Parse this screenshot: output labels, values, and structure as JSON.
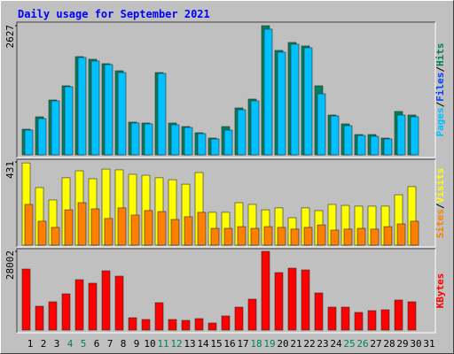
{
  "chart_data": [
    {
      "type": "bar",
      "title": "Daily usage for September 2021",
      "ylim": [
        0,
        2627
      ],
      "yticks": [
        2627
      ],
      "legend_labels": [
        "Pages",
        "Files",
        "Hits"
      ],
      "legend_colors": [
        "#00c0ff",
        "#0040ff",
        "#00805c"
      ],
      "legend_separator": "/",
      "series": [
        {
          "name": "Hits",
          "color": "#00805c",
          "values": [
            522,
            774,
            1116,
            1404,
            1998,
            1944,
            1854,
            1710,
            666,
            648,
            1674,
            648,
            576,
            450,
            342,
            576,
            954,
            1134,
            2627,
            2124,
            2286,
            2214,
            1404,
            810,
            630,
            414,
            414,
            342,
            882,
            810,
            null
          ]
        },
        {
          "name": "Pages",
          "color": "#00c0ff",
          "values": [
            504,
            738,
            1098,
            1386,
            1980,
            1908,
            1836,
            1674,
            648,
            630,
            1656,
            612,
            558,
            432,
            324,
            504,
            918,
            1098,
            2556,
            2088,
            2250,
            2178,
            1242,
            792,
            594,
            396,
            378,
            324,
            810,
            774,
            null
          ]
        }
      ]
    },
    {
      "type": "bar",
      "ylim": [
        0,
        431
      ],
      "yticks": [
        431
      ],
      "legend_labels": [
        "Sites",
        "Visits"
      ],
      "legend_colors": [
        "#ff8000",
        "#ffff00"
      ],
      "legend_separator": "/",
      "series": [
        {
          "name": "Visits",
          "color": "#ffff00",
          "values": [
            426,
            298,
            234,
            349,
            385,
            344,
            394,
            390,
            367,
            362,
            349,
            339,
            316,
            376,
            170,
            170,
            220,
            211,
            183,
            193,
            142,
            193,
            179,
            211,
            206,
            202,
            202,
            202,
            261,
            303,
            null
          ]
        },
        {
          "name": "Sites",
          "color": "#ff8000",
          "values": [
            211,
            124,
            92,
            183,
            220,
            188,
            138,
            193,
            156,
            179,
            174,
            133,
            147,
            170,
            87,
            87,
            96,
            87,
            96,
            92,
            83,
            92,
            105,
            78,
            83,
            87,
            83,
            96,
            110,
            124,
            null
          ]
        }
      ]
    },
    {
      "type": "bar",
      "ylim": [
        0,
        28002
      ],
      "yticks": [
        28002
      ],
      "legend_labels": [
        "KBytes"
      ],
      "legend_colors": [
        "#ff0000"
      ],
      "series": [
        {
          "name": "KBytes",
          "color": "#ff0000",
          "values": [
            21707,
            8494,
            10067,
            12899,
            17933,
            16675,
            21079,
            19191,
            4405,
            3775,
            9753,
            3775,
            3461,
            4090,
            2517,
            5034,
            8180,
            11012,
            28002,
            20449,
            22022,
            21393,
            13213,
            8180,
            8180,
            6293,
            6922,
            7236,
            10697,
            10067,
            null
          ]
        }
      ],
      "categories": [
        "1",
        "2",
        "3",
        "4",
        "5",
        "6",
        "7",
        "8",
        "9",
        "10",
        "11",
        "12",
        "13",
        "14",
        "15",
        "16",
        "17",
        "18",
        "19",
        "20",
        "21",
        "22",
        "23",
        "24",
        "25",
        "26",
        "27",
        "28",
        "29",
        "30",
        "31"
      ],
      "category_colors": [
        "#000000",
        "#000000",
        "#000000",
        "#00805c",
        "#00805c",
        "#000000",
        "#000000",
        "#000000",
        "#000000",
        "#000000",
        "#00805c",
        "#00805c",
        "#000000",
        "#000000",
        "#000000",
        "#000000",
        "#000000",
        "#00805c",
        "#00805c",
        "#000000",
        "#000000",
        "#000000",
        "#000000",
        "#000000",
        "#00805c",
        "#00805c",
        "#000000",
        "#000000",
        "#000000",
        "#000000",
        "#000000"
      ]
    }
  ]
}
